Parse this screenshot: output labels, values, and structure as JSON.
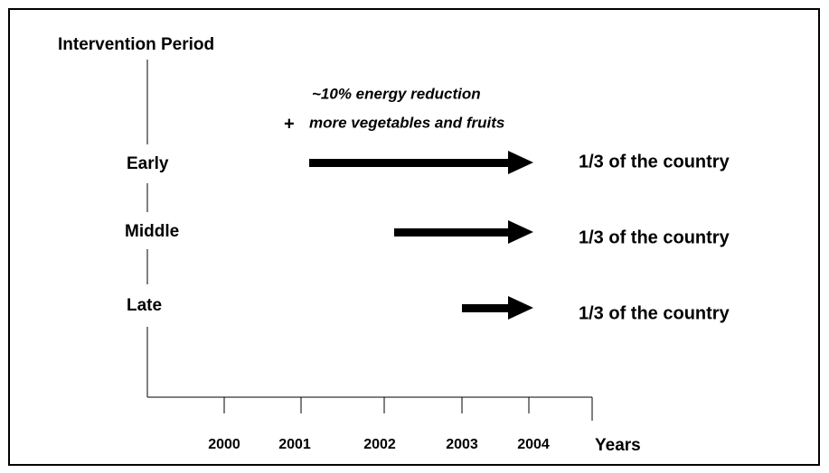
{
  "title": "Intervention Period",
  "annotation": {
    "line1": "~10% energy reduction",
    "plus": "+",
    "line2": "more vegetables and fruits"
  },
  "rows": [
    {
      "label": "Early",
      "note": "1/3 of the country"
    },
    {
      "label": "Middle",
      "note": "1/3 of the country"
    },
    {
      "label": "Late",
      "note": "1/3 of the country"
    }
  ],
  "years": [
    "2000",
    "2001",
    "2002",
    "2003",
    "2004"
  ],
  "axis_label": "Years"
}
